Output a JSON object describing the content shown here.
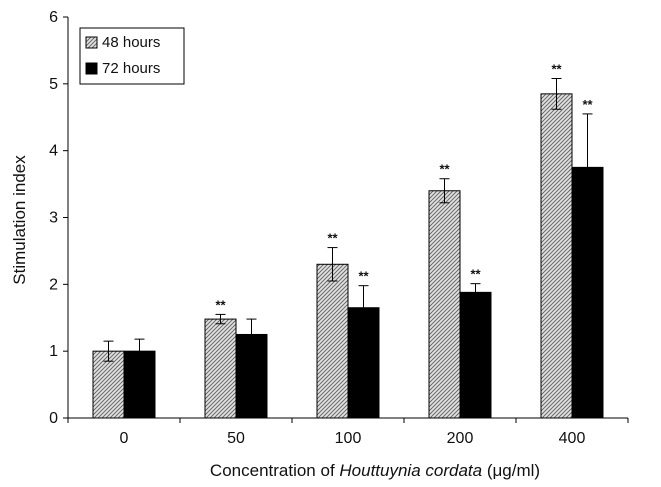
{
  "chart_data": {
    "type": "bar",
    "title": "",
    "xlabel": {
      "prefix": "Concentration of ",
      "italic": "Houttuynia cordata",
      "suffix": " (μg/ml)"
    },
    "ylabel": "Stimulation index",
    "categories": [
      "0",
      "50",
      "100",
      "200",
      "400"
    ],
    "ylim": [
      0,
      6
    ],
    "yticks": [
      "0",
      "1",
      "2",
      "3",
      "4",
      "5",
      "6"
    ],
    "legend_position": "top-left",
    "series": [
      {
        "name": "48 hours",
        "pattern": "hatched",
        "color": "#bdbdbd",
        "values": [
          1.0,
          1.48,
          2.3,
          3.4,
          4.85
        ],
        "errors": [
          0.15,
          0.07,
          0.25,
          0.18,
          0.23
        ],
        "significance": [
          "",
          "**",
          "**",
          "**",
          "**"
        ]
      },
      {
        "name": "72 hours",
        "pattern": "solid",
        "color": "#000000",
        "values": [
          1.0,
          1.25,
          1.65,
          1.88,
          3.75
        ],
        "errors": [
          0.18,
          0.23,
          0.33,
          0.13,
          0.8
        ],
        "significance": [
          "",
          "",
          "**",
          "**",
          "**"
        ]
      }
    ]
  }
}
